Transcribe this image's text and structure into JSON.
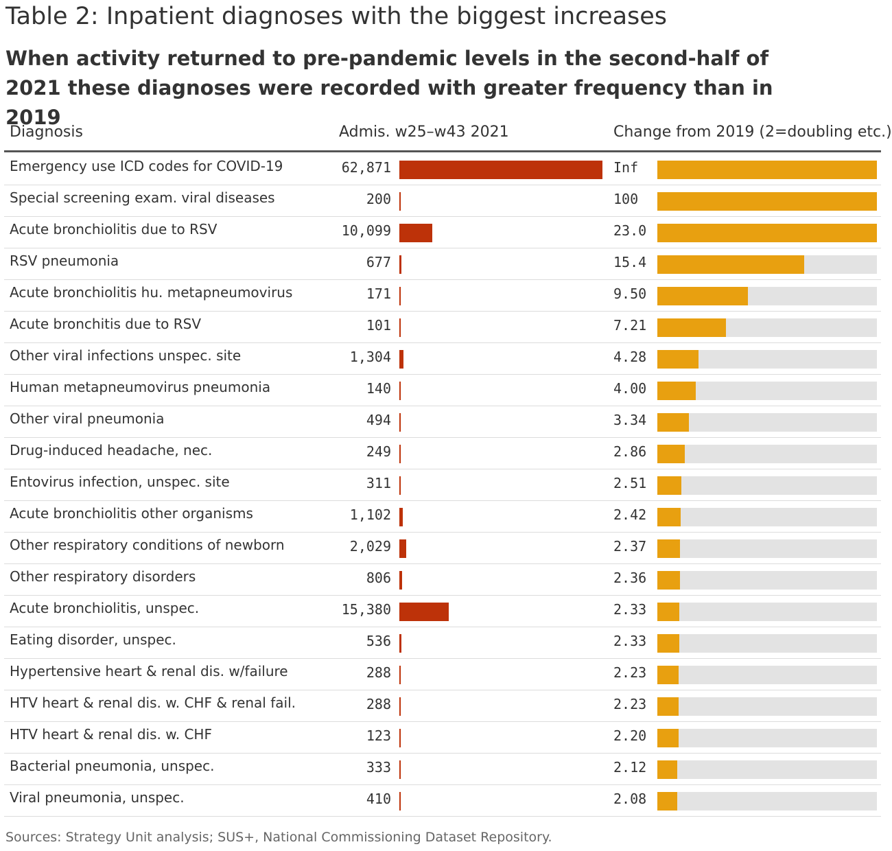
{
  "title": "Table 2: Inpatient diagnoses with the biggest increases",
  "subtitle": "When activity returned to pre-pandemic levels in the second-half of 2021 these diagnoses were recorded with greater frequency than in 2019",
  "source": "Sources: Strategy Unit analysis; SUS+, National Commissioning Dataset Repository.",
  "chart_data": {
    "type": "table",
    "columns": [
      "Diagnosis",
      "Admis. w25–w43 2021",
      "Change from 2019 (2=doubling etc.)"
    ],
    "colors": {
      "admissions_bar": "#bd3209",
      "change_bar": "#e8a010",
      "change_track": "#e3e3e3"
    },
    "admissions_max": 62871,
    "change_cap": 23.0,
    "rows": [
      {
        "diagnosis": "Emergency use ICD codes for COVID-19",
        "admissions": 62871,
        "admissions_label": "62,871",
        "change": null,
        "change_label": "Inf"
      },
      {
        "diagnosis": "Special screening exam. viral diseases",
        "admissions": 200,
        "admissions_label": "200",
        "change": 100,
        "change_label": "100"
      },
      {
        "diagnosis": "Acute bronchiolitis due to RSV",
        "admissions": 10099,
        "admissions_label": "10,099",
        "change": 23.0,
        "change_label": "23.0"
      },
      {
        "diagnosis": "RSV pneumonia",
        "admissions": 677,
        "admissions_label": "677",
        "change": 15.4,
        "change_label": "15.4"
      },
      {
        "diagnosis": "Acute bronchiolitis hu. metapneumovirus",
        "admissions": 171,
        "admissions_label": "171",
        "change": 9.5,
        "change_label": "9.50"
      },
      {
        "diagnosis": "Acute bronchitis due to RSV",
        "admissions": 101,
        "admissions_label": "101",
        "change": 7.21,
        "change_label": "7.21"
      },
      {
        "diagnosis": "Other viral infections unspec. site",
        "admissions": 1304,
        "admissions_label": "1,304",
        "change": 4.28,
        "change_label": "4.28"
      },
      {
        "diagnosis": "Human metapneumovirus pneumonia",
        "admissions": 140,
        "admissions_label": "140",
        "change": 4.0,
        "change_label": "4.00"
      },
      {
        "diagnosis": "Other viral pneumonia",
        "admissions": 494,
        "admissions_label": "494",
        "change": 3.34,
        "change_label": "3.34"
      },
      {
        "diagnosis": "Drug-induced headache, nec.",
        "admissions": 249,
        "admissions_label": "249",
        "change": 2.86,
        "change_label": "2.86"
      },
      {
        "diagnosis": "Entovirus infection, unspec. site",
        "admissions": 311,
        "admissions_label": "311",
        "change": 2.51,
        "change_label": "2.51"
      },
      {
        "diagnosis": "Acute bronchiolitis other organisms",
        "admissions": 1102,
        "admissions_label": "1,102",
        "change": 2.42,
        "change_label": "2.42"
      },
      {
        "diagnosis": "Other respiratory conditions of newborn",
        "admissions": 2029,
        "admissions_label": "2,029",
        "change": 2.37,
        "change_label": "2.37"
      },
      {
        "diagnosis": "Other respiratory disorders",
        "admissions": 806,
        "admissions_label": "806",
        "change": 2.36,
        "change_label": "2.36"
      },
      {
        "diagnosis": "Acute bronchiolitis, unspec.",
        "admissions": 15380,
        "admissions_label": "15,380",
        "change": 2.33,
        "change_label": "2.33"
      },
      {
        "diagnosis": "Eating disorder, unspec.",
        "admissions": 536,
        "admissions_label": "536",
        "change": 2.33,
        "change_label": "2.33"
      },
      {
        "diagnosis": "Hypertensive heart & renal dis. w/failure",
        "admissions": 288,
        "admissions_label": "288",
        "change": 2.23,
        "change_label": "2.23"
      },
      {
        "diagnosis": "HTV heart & renal dis. w. CHF & renal fail.",
        "admissions": 288,
        "admissions_label": "288",
        "change": 2.23,
        "change_label": "2.23"
      },
      {
        "diagnosis": "HTV heart & renal dis. w. CHF",
        "admissions": 123,
        "admissions_label": "123",
        "change": 2.2,
        "change_label": "2.20"
      },
      {
        "diagnosis": "Bacterial pneumonia, unspec.",
        "admissions": 333,
        "admissions_label": "333",
        "change": 2.12,
        "change_label": "2.12"
      },
      {
        "diagnosis": "Viral pneumonia, unspec.",
        "admissions": 410,
        "admissions_label": "410",
        "change": 2.08,
        "change_label": "2.08"
      }
    ]
  }
}
